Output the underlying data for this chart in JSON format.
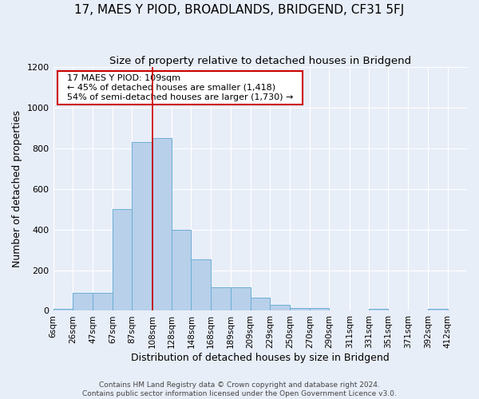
{
  "title": "17, MAES Y PIOD, BROADLANDS, BRIDGEND, CF31 5FJ",
  "subtitle": "Size of property relative to detached houses in Bridgend",
  "xlabel": "Distribution of detached houses by size in Bridgend",
  "ylabel": "Number of detached properties",
  "footer_line1": "Contains HM Land Registry data © Crown copyright and database right 2024.",
  "footer_line2": "Contains public sector information licensed under the Open Government Licence v3.0.",
  "annotation_title": "17 MAES Y PIOD: 109sqm",
  "annotation_line2": "← 45% of detached houses are smaller (1,418)",
  "annotation_line3": "54% of semi-detached houses are larger (1,730) →",
  "bins": [
    6,
    26,
    47,
    67,
    87,
    108,
    128,
    148,
    168,
    189,
    209,
    229,
    250,
    270,
    290,
    311,
    331,
    351,
    371,
    392,
    412
  ],
  "bar_heights": [
    10,
    90,
    90,
    500,
    830,
    850,
    400,
    255,
    115,
    115,
    65,
    30,
    15,
    15,
    0,
    0,
    10,
    0,
    0,
    10,
    0
  ],
  "bar_color": "#b8d0ea",
  "bar_edge_color": "#6baed6",
  "vline_color": "#cc0000",
  "vline_x": 108,
  "annotation_box_edge": "#cc0000",
  "annotation_box_face": "#ffffff",
  "ylim": [
    0,
    1200
  ],
  "yticks": [
    0,
    200,
    400,
    600,
    800,
    1000,
    1200
  ],
  "bg_color": "#e8eef8",
  "grid_color": "#ffffff",
  "title_fontsize": 11,
  "subtitle_fontsize": 9.5,
  "ylabel_fontsize": 9,
  "xlabel_fontsize": 9,
  "tick_fontsize": 7.5,
  "footer_fontsize": 6.5
}
